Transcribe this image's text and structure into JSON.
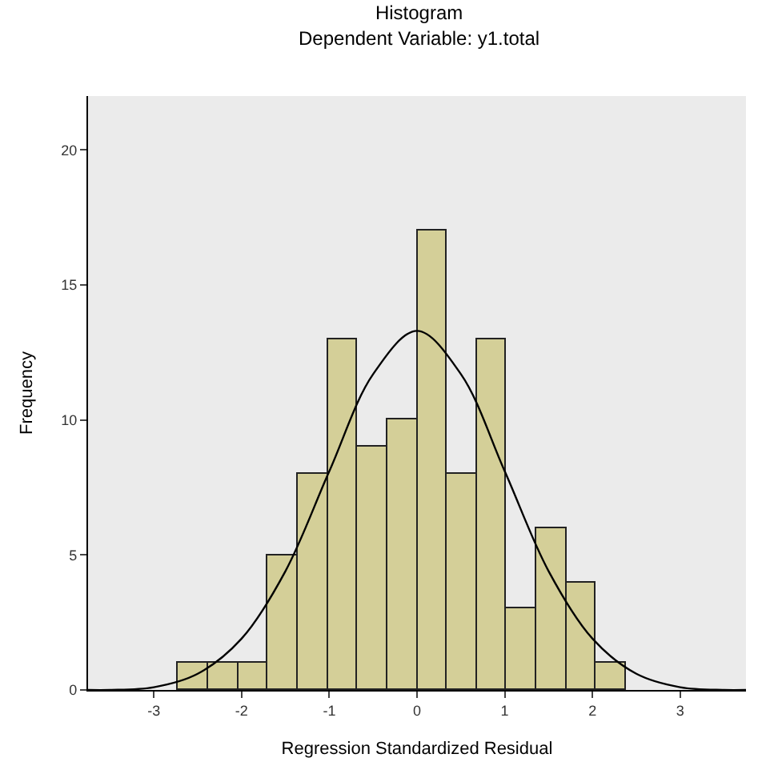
{
  "chart_data": {
    "type": "histogram",
    "title": "Histogram",
    "subtitle": "Dependent Variable: y1.total",
    "xlabel": "Regression Standardized Residual",
    "ylabel": "Frequency",
    "bins": [
      -2.72,
      -2.38,
      -2.04,
      -1.7,
      -1.36,
      -1.02,
      -0.68,
      -0.34,
      0,
      0.34,
      0.68,
      1.02,
      1.36,
      1.7,
      2.04,
      2.38
    ],
    "values": [
      1,
      1,
      1,
      5,
      8,
      13,
      9,
      10,
      17,
      8,
      13,
      3,
      6,
      4,
      1
    ],
    "color": "#d4cf98",
    "series": [
      {
        "type": "line",
        "color": "#000000",
        "x": [
          -3.75,
          -3.5,
          -3,
          -2.5,
          -2,
          -1.5,
          -1,
          -0.5,
          0,
          0.5,
          1,
          1.5,
          2,
          2.5,
          3,
          3.5,
          3.75
        ],
        "values": [
          0,
          0,
          0.1,
          0.6,
          1.9,
          4.4,
          8.1,
          11.7,
          13.3,
          11.7,
          8.1,
          4.4,
          1.9,
          0.6,
          0.1,
          0,
          0
        ]
      }
    ],
    "xlim": [
      -3.75,
      3.75
    ],
    "xticks": [
      -3,
      -2,
      -1,
      0,
      1,
      2,
      3
    ],
    "ylim": [
      0,
      22
    ],
    "yticks": [
      0,
      5,
      10,
      15,
      20
    ],
    "grid": false
  }
}
